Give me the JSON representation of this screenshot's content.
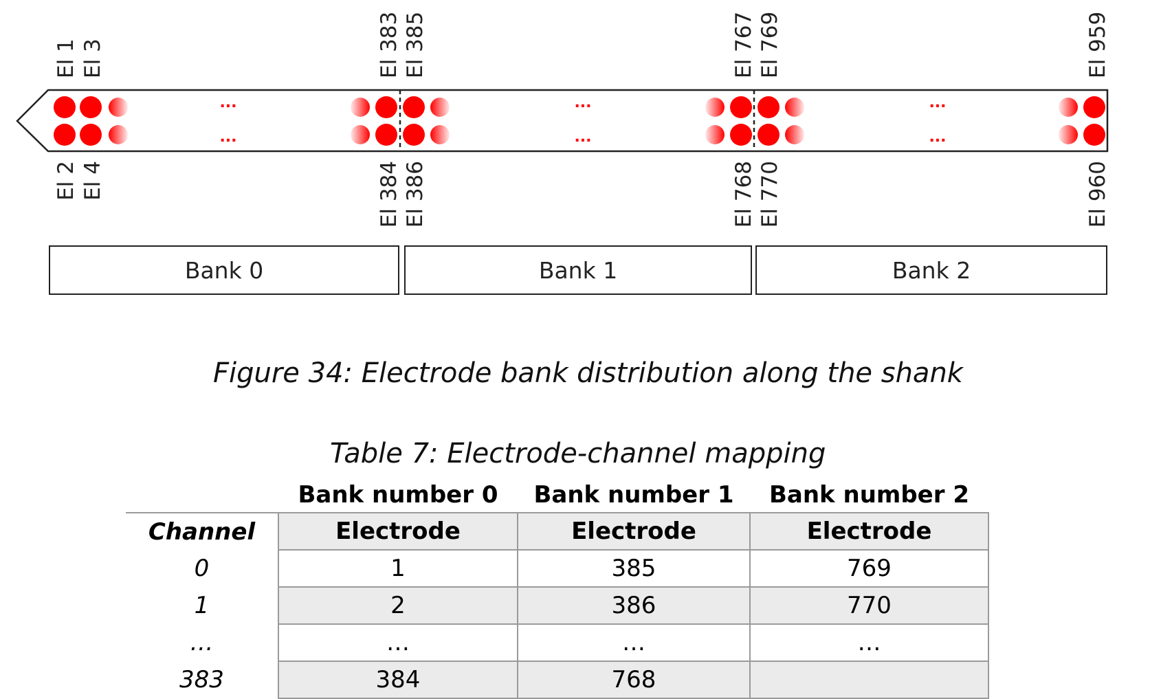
{
  "figure": {
    "caption": "Figure 34: Electrode bank distribution along the shank",
    "labels_top": [
      "El 1",
      "El 3",
      "El 383",
      "El 385",
      "El 767",
      "El 769",
      "El 959"
    ],
    "labels_bottom": [
      "El 2",
      "El 4",
      "El 384",
      "El 386",
      "El 768",
      "El 770",
      "El 960"
    ],
    "ellipsis": "...",
    "banks": [
      "Bank 0",
      "Bank 1",
      "Bank 2"
    ],
    "electrode_color": "#ff0000",
    "gap_dots_color": "#ff0000"
  },
  "table": {
    "caption": "Table 7: Electrode-channel mapping",
    "bank_headers": [
      "Bank number 0",
      "Bank number 1",
      "Bank number 2"
    ],
    "channel_header": "Channel",
    "electrode_header": "Electrode",
    "rows": [
      {
        "channel": "0",
        "values": [
          "1",
          "385",
          "769"
        ]
      },
      {
        "channel": "1",
        "values": [
          "2",
          "386",
          "770"
        ]
      },
      {
        "channel": "…",
        "values": [
          "…",
          "…",
          "…"
        ]
      },
      {
        "channel": "383",
        "values": [
          "384",
          "768",
          ""
        ]
      }
    ],
    "shade_color": "#ebebeb"
  }
}
